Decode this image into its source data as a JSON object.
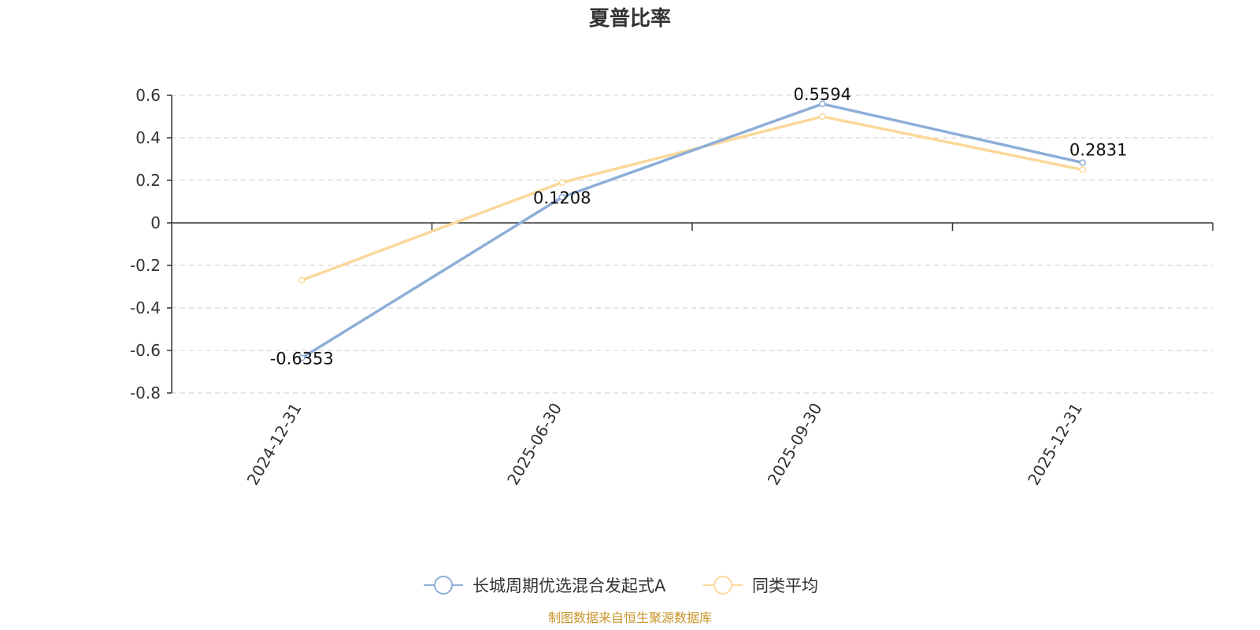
{
  "chart_data": {
    "type": "line",
    "title": "夏普比率",
    "categories": [
      "2024-12-31",
      "2025-06-30",
      "2025-09-30",
      "2025-12-31"
    ],
    "series": [
      {
        "name": "长城周期优选混合发起式A",
        "values": [
          -0.6353,
          0.1208,
          0.5594,
          0.2831
        ],
        "data_labels": [
          "-0.6353",
          "0.1208",
          "0.5594",
          "0.2831"
        ],
        "color": "#8eaed8"
      },
      {
        "name": "同类平均",
        "values": [
          -0.27,
          0.19,
          0.5,
          0.25
        ],
        "color": "#fbd89a"
      }
    ],
    "ylim": [
      -0.8,
      0.6
    ],
    "yticks": [
      "0.6",
      "0.4",
      "0.2",
      "0",
      "-0.2",
      "-0.4",
      "-0.6",
      "-0.8"
    ],
    "grid": true,
    "legend_position": "bottom-center",
    "source_note": "制图数据来自恒生聚源数据库",
    "source_color": "#c8962c"
  }
}
